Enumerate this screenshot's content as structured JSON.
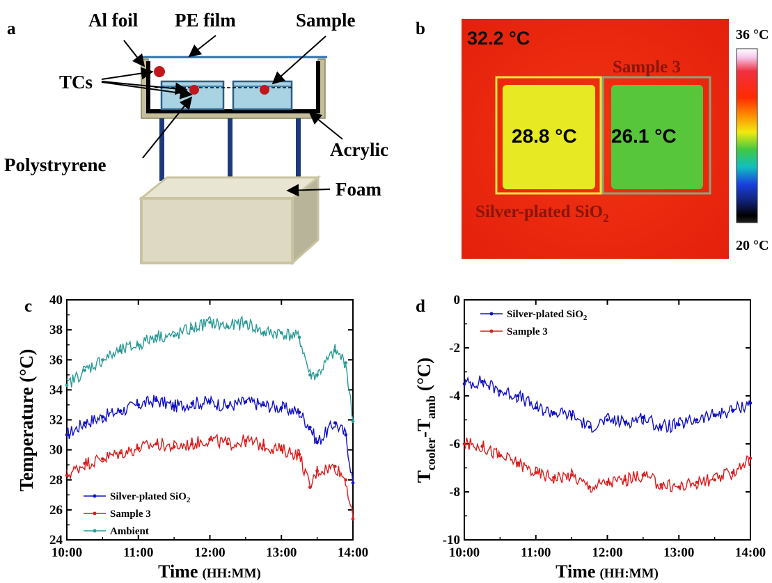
{
  "panel_a": {
    "letter": "a",
    "labels": {
      "al_foil": "Al foil",
      "pe_film": "PE film",
      "sample": "Sample",
      "tcs": "TCs",
      "polystyrene": "Polystryrene",
      "acrylic": "Acrylic",
      "foam": "Foam"
    },
    "colors": {
      "frame": "#c4bf9a",
      "sample_box": "#a9d3e3",
      "tc": "#c0161c",
      "legs": "#1f3a7a",
      "foam": "#ddd9c3"
    }
  },
  "panel_b": {
    "letter": "b",
    "ambient": "32.2 °C",
    "sample3_label": "Sample 3",
    "silver_temp": "28.8 °C",
    "sample3_temp": "26.1 °C",
    "silver_label": "Silver-plated SiO",
    "silver_sub": "2",
    "scale_max": "36 °C",
    "scale_min": "20 °C",
    "colors": {
      "background": "#ee2a0e",
      "silver": "#e7ea22",
      "sample3": "#58c63b",
      "silver_box": "#f2e640",
      "sample3_box": "#8aa57a"
    }
  },
  "chart_data": [
    {
      "panel": "c",
      "type": "line",
      "xlabel": "Time",
      "xlabel_unit": "(HH:MM)",
      "ylabel": "Temperature (°C)",
      "xlim": [
        "10:00",
        "14:00"
      ],
      "ylim": [
        24,
        40
      ],
      "x_ticks": [
        "10:00",
        "11:00",
        "12:00",
        "13:00",
        "14:00"
      ],
      "y_ticks": [
        24,
        26,
        28,
        30,
        32,
        34,
        36,
        38,
        40
      ],
      "legend_position": "bottom-left",
      "x_hours": [
        0,
        0.25,
        0.5,
        0.75,
        1.0,
        1.25,
        1.5,
        1.75,
        2.0,
        2.25,
        2.5,
        2.75,
        3.0,
        3.25,
        3.4,
        3.5,
        3.75,
        3.9,
        4.0
      ],
      "series": [
        {
          "name": "Silver-plated SiO",
          "name_sub": "2",
          "color": "#1010c8",
          "values": [
            31.0,
            31.8,
            32.2,
            32.6,
            33.0,
            33.3,
            32.9,
            33.1,
            33.2,
            32.9,
            33.2,
            33.0,
            32.8,
            32.5,
            31.5,
            30.5,
            31.8,
            31.0,
            27.8
          ]
        },
        {
          "name": "Sample 3",
          "color": "#dd1a1a",
          "values": [
            28.3,
            29.1,
            29.4,
            29.8,
            30.1,
            30.4,
            30.2,
            30.4,
            30.7,
            30.4,
            30.6,
            30.3,
            30.0,
            29.7,
            27.5,
            28.6,
            28.9,
            28.0,
            25.4
          ]
        },
        {
          "name": "Ambient",
          "color": "#2a9b97",
          "values": [
            34.3,
            35.3,
            36.0,
            36.6,
            37.0,
            37.6,
            37.6,
            38.1,
            38.5,
            38.2,
            38.5,
            37.8,
            37.8,
            37.5,
            35.0,
            35.0,
            36.6,
            35.8,
            31.9
          ]
        }
      ]
    },
    {
      "panel": "d",
      "type": "line",
      "xlabel": "Time",
      "xlabel_unit": "(HH:MM)",
      "ylabel": "T",
      "ylabel_sub1": "cooler",
      "ylabel_mid": "-T",
      "ylabel_sub2": "amb",
      "ylabel_unit": "(°C)",
      "xlim": [
        "10:00",
        "14:00"
      ],
      "ylim": [
        -10,
        0
      ],
      "x_ticks": [
        "10:00",
        "11:00",
        "12:00",
        "13:00",
        "14:00"
      ],
      "y_ticks": [
        0,
        -2,
        -4,
        -6,
        -8,
        -10
      ],
      "legend_position": "top-left",
      "x_hours": [
        0,
        0.25,
        0.5,
        0.75,
        1.0,
        1.25,
        1.5,
        1.75,
        2.0,
        2.25,
        2.5,
        2.75,
        3.0,
        3.25,
        3.5,
        3.75,
        4.0
      ],
      "series": [
        {
          "name": "Silver-plated SiO",
          "name_sub": "2",
          "color": "#1010c8",
          "values": [
            -3.5,
            -3.4,
            -3.8,
            -4.0,
            -4.5,
            -4.7,
            -4.8,
            -5.3,
            -5.0,
            -5.1,
            -4.9,
            -5.3,
            -5.2,
            -5.0,
            -4.8,
            -4.6,
            -4.3
          ]
        },
        {
          "name": "Sample 3",
          "color": "#dd1a1a",
          "values": [
            -6.0,
            -6.1,
            -6.5,
            -6.8,
            -7.2,
            -7.4,
            -7.3,
            -7.8,
            -7.6,
            -7.5,
            -7.3,
            -7.7,
            -7.8,
            -7.6,
            -7.5,
            -7.2,
            -6.6
          ]
        }
      ]
    }
  ]
}
